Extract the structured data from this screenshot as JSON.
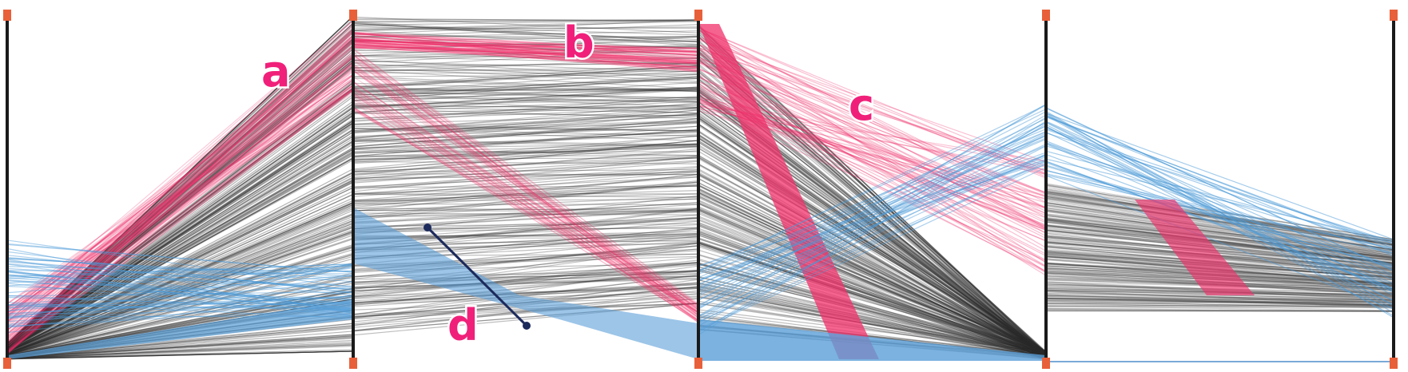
{
  "annotations": [
    "a",
    "b",
    "c",
    "d"
  ]
}
